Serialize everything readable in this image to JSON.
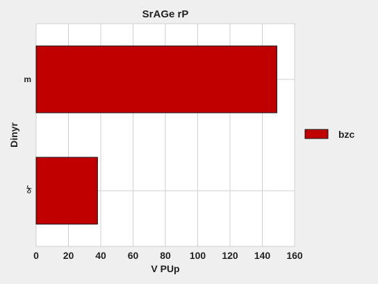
{
  "chart_data": {
    "type": "bar",
    "orientation": "horizontal",
    "title": "SrAGe rP",
    "xlabel": "V PUp",
    "ylabel": "Dinyr",
    "categories": [
      "m",
      "ঠ"
    ],
    "series": [
      {
        "name": "bzc",
        "values": [
          149,
          38
        ],
        "color": "#c00000"
      }
    ],
    "xlim": [
      0,
      160
    ],
    "xticks": [
      0,
      20,
      40,
      60,
      80,
      100,
      120,
      140,
      160
    ],
    "grid": true,
    "legend_position": "right"
  }
}
